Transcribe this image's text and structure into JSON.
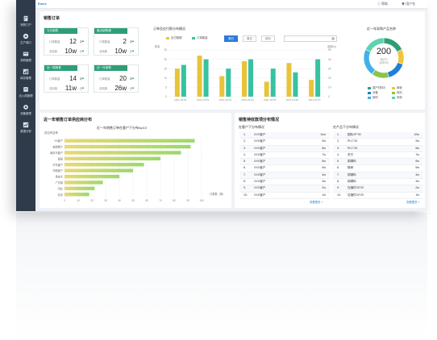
{
  "app": {
    "logo": "Emes",
    "notice": "帮助",
    "user": "用户名"
  },
  "sidebar": {
    "items": [
      {
        "label": "采购门户",
        "icon": "building-icon"
      },
      {
        "label": "生产端口",
        "icon": "factory-icon"
      },
      {
        "label": "采购管理",
        "icon": "cart-icon"
      },
      {
        "label": "库存管理",
        "icon": "chart-icon"
      },
      {
        "label": "出入库管理",
        "icon": "box-icon"
      },
      {
        "label": "设备管理",
        "icon": "gear-icon"
      },
      {
        "label": "数据分析",
        "icon": "analytics-icon"
      }
    ]
  },
  "orders": {
    "title": "销售订单",
    "cards": [
      {
        "header": "今日销售",
        "rows": [
          {
            "label": "订单数量",
            "value": "12",
            "unit": "单"
          },
          {
            "label": "总收款",
            "value": "10w",
            "unit": "元"
          }
        ]
      },
      {
        "header": "最近销售额",
        "rows": [
          {
            "label": "订单数量",
            "value": "2",
            "unit": "单"
          },
          {
            "label": "总收款",
            "value": "10w",
            "unit": "元"
          }
        ]
      },
      {
        "header": "近一周销售",
        "rows": [
          {
            "label": "订单数量",
            "value": "14",
            "unit": "单"
          },
          {
            "label": "总收款",
            "value": "11w",
            "unit": "元"
          }
        ]
      },
      {
        "header": "近一月销售",
        "rows": [
          {
            "label": "订单数量",
            "value": "20",
            "unit": "单"
          },
          {
            "label": "总收款",
            "value": "26w",
            "unit": "元"
          }
        ]
      }
    ]
  },
  "order_chart": {
    "title": "订单及应付款分布情况",
    "segments": [
      "周日",
      "周日",
      "按月"
    ],
    "legend": [
      "应付款额",
      "订单数量"
    ]
  },
  "donut": {
    "title": "近一年采购产品名称",
    "total": "200",
    "sub": "总(个)",
    "percent": "(100%)"
  },
  "hbar": {
    "section": "近一年销售订单供应商分布",
    "title": "近一年销售订单在客户下分布top10",
    "ylabel": "供应商名称",
    "xlabel": "订单数（单）"
  },
  "tables": {
    "section": "销售待收款项分布情况",
    "left": {
      "title": "在客户下分布情况",
      "rows": [
        {
          "rank": "1.",
          "name": "XXX客户",
          "value": "1bw"
        },
        {
          "rank": "2.",
          "name": "XXX客户",
          "value": "9w"
        },
        {
          "rank": "3.",
          "name": "XXX客户",
          "value": "8w"
        },
        {
          "rank": "4.",
          "name": "XXX客户",
          "value": "7w"
        },
        {
          "rank": "5.",
          "name": "XXX客户",
          "value": "6w"
        },
        {
          "rank": "6.",
          "name": "XXX客户",
          "value": "5w"
        },
        {
          "rank": "7.",
          "name": "XXX客户",
          "value": "4w"
        },
        {
          "rank": "8.",
          "name": "XXX客户",
          "value": "3w"
        },
        {
          "rank": "9.",
          "name": "XXX客户",
          "value": "2w"
        },
        {
          "rank": "10.",
          "name": "XXX客户",
          "value": "1w"
        }
      ],
      "more": "查看更多 >"
    },
    "right": {
      "title": "在产品下分布情况",
      "rows": [
        {
          "rank": "1.",
          "name": "国际JP\"30",
          "value": "10w"
        },
        {
          "rank": "2.",
          "name": "PLC\"20",
          "value": "9w"
        },
        {
          "rank": "3.",
          "name": "PLC\"30",
          "value": "8w"
        },
        {
          "rank": "4.",
          "name": "关尺",
          "value": "7w"
        },
        {
          "rank": "5.",
          "name": "铜锡料",
          "value": "6w"
        },
        {
          "rank": "6.",
          "name": "随承",
          "value": "5w"
        },
        {
          "rank": "7.",
          "name": "铜锡料",
          "value": "4w"
        },
        {
          "rank": "8.",
          "name": "铜锡料",
          "value": "3w"
        },
        {
          "rank": "9.",
          "name": "压缩件30\"20",
          "value": "2w"
        },
        {
          "rank": "10.",
          "name": "压缩件30\"20",
          "value": "1w"
        }
      ],
      "more": "查看更多 >"
    }
  },
  "chart_data": [
    {
      "type": "bar",
      "categories": [
        "2021-04-01",
        "2021-04-02",
        "2021-04-03",
        "2021-04-04",
        "2021-04-05",
        "2021-04-06",
        "2021-04-07"
      ],
      "series": [
        {
          "name": "应付款额",
          "color": "#e7c43a",
          "values": [
            15,
            22,
            11,
            19,
            8,
            18,
            9
          ]
        },
        {
          "name": "订单数量",
          "color": "#37c2a0",
          "values": [
            17,
            20,
            15,
            20,
            15,
            13,
            20
          ]
        }
      ],
      "ylim": [
        0,
        25
      ],
      "y2lim": [
        0,
        50
      ],
      "ylabel": "数量",
      "y2label": "金额(w)",
      "yticks": [
        0,
        5,
        10,
        15,
        20,
        25
      ],
      "y2ticks": [
        0,
        10,
        20,
        30,
        40,
        50
      ]
    },
    {
      "type": "pie",
      "donut": true,
      "slices": [
        {
          "label": "国产材料B",
          "value": 18,
          "color": "#2e9f74"
        },
        {
          "label": "铸铁",
          "value": 12,
          "color": "#f3c33a"
        },
        {
          "label": "设备",
          "value": 16,
          "color": "#1f7fd6"
        },
        {
          "label": "电料",
          "value": 14,
          "color": "#8bc34a"
        },
        {
          "label": "钢材",
          "value": 22,
          "color": "#41b0e8"
        },
        {
          "label": "其他",
          "value": 18,
          "color": "#5ed3b0"
        }
      ]
    },
    {
      "type": "bar",
      "orientation": "horizontal",
      "categories": [
        "XX客户",
        "安徽客户",
        "南京冷客户",
        "星辰",
        "华东客户",
        "华南客户",
        "重庆大",
        "广东城",
        "河北",
        "北京"
      ],
      "values": [
        95,
        92,
        85,
        70,
        58,
        50,
        40,
        28,
        22,
        18
      ],
      "xlim": [
        0,
        100
      ],
      "xticks": [
        0,
        10,
        20,
        30,
        40,
        50,
        60,
        70,
        80,
        90,
        100
      ]
    }
  ]
}
